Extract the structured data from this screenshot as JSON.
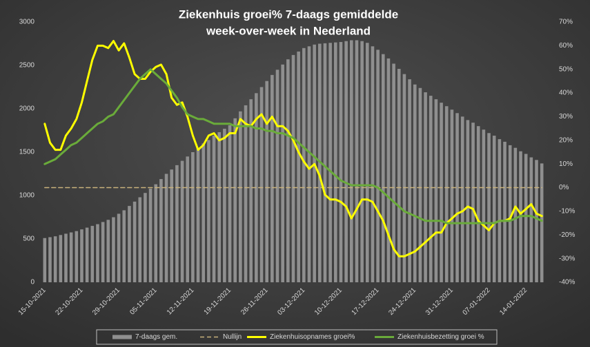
{
  "chart_data": {
    "type": "combo",
    "title_lines": [
      "Ziekenhuis groei% 7-daags gemiddelde",
      "week-over-week in Nederland"
    ],
    "categories": [
      "15-10-2021",
      null,
      null,
      null,
      null,
      null,
      null,
      "22-10-2021",
      null,
      null,
      null,
      null,
      null,
      null,
      "29-10-2021",
      null,
      null,
      null,
      null,
      null,
      null,
      "05-11-2021",
      null,
      null,
      null,
      null,
      null,
      null,
      "12-11-2021",
      null,
      null,
      null,
      null,
      null,
      null,
      "19-11-2021",
      null,
      null,
      null,
      null,
      null,
      null,
      "26-11-2021",
      null,
      null,
      null,
      null,
      null,
      null,
      "03-12-2021",
      null,
      null,
      null,
      null,
      null,
      null,
      "10-12-2021",
      null,
      null,
      null,
      null,
      null,
      null,
      "17-12-2021",
      null,
      null,
      null,
      null,
      null,
      null,
      "24-12-2021",
      null,
      null,
      null,
      null,
      null,
      null,
      "31-12-2021",
      null,
      null,
      null,
      null,
      null,
      null,
      "07-01-2022",
      null,
      null,
      null,
      null,
      null,
      null,
      "14-01-2022",
      null,
      null,
      null
    ],
    "ylim": [
      0,
      3000
    ],
    "yticks": [
      0,
      500,
      1000,
      1500,
      2000,
      2500,
      3000
    ],
    "y2lim": [
      -40,
      70
    ],
    "y2ticks": [
      {
        "value": -40,
        "label": "-40%"
      },
      {
        "value": -30,
        "label": "-30%"
      },
      {
        "value": -20,
        "label": "-20%"
      },
      {
        "value": -10,
        "label": "-10%"
      },
      {
        "value": 0,
        "label": "0%"
      },
      {
        "value": 10,
        "label": "10%"
      },
      {
        "value": 20,
        "label": "20%"
      },
      {
        "value": 30,
        "label": "30%"
      },
      {
        "value": 40,
        "label": "40%"
      },
      {
        "value": 50,
        "label": "50%"
      },
      {
        "value": 60,
        "label": "60%"
      },
      {
        "value": 70,
        "label": "70%"
      }
    ],
    "grid": false,
    "series": [
      {
        "name": "7-daags gem.",
        "type": "bar",
        "color": "#8f8f8f",
        "values": [
          510,
          520,
          530,
          545,
          560,
          575,
          590,
          610,
          630,
          650,
          670,
          695,
          720,
          750,
          790,
          830,
          880,
          930,
          980,
          1030,
          1080,
          1130,
          1190,
          1250,
          1300,
          1350,
          1400,
          1450,
          1500,
          1550,
          1600,
          1640,
          1690,
          1730,
          1770,
          1810,
          1890,
          1970,
          2040,
          2110,
          2180,
          2250,
          2320,
          2390,
          2450,
          2510,
          2570,
          2620,
          2660,
          2700,
          2720,
          2740,
          2750,
          2755,
          2760,
          2765,
          2770,
          2780,
          2790,
          2790,
          2780,
          2760,
          2720,
          2680,
          2630,
          2580,
          2520,
          2460,
          2400,
          2340,
          2280,
          2240,
          2190,
          2150,
          2110,
          2070,
          2030,
          1990,
          1950,
          1910,
          1870,
          1840,
          1800,
          1760,
          1720,
          1690,
          1650,
          1620,
          1580,
          1550,
          1510,
          1480,
          1440,
          1410,
          1370
        ]
      },
      {
        "name": "Nullijn",
        "type": "line",
        "axis": "y2",
        "dash": true,
        "color": "#c9b27c",
        "values": [
          0,
          0,
          0,
          0,
          0,
          0,
          0,
          0,
          0,
          0,
          0,
          0,
          0,
          0,
          0,
          0,
          0,
          0,
          0,
          0,
          0,
          0,
          0,
          0,
          0,
          0,
          0,
          0,
          0,
          0,
          0,
          0,
          0,
          0,
          0,
          0,
          0,
          0,
          0,
          0,
          0,
          0,
          0,
          0,
          0,
          0,
          0,
          0,
          0,
          0,
          0,
          0,
          0,
          0,
          0,
          0,
          0,
          0,
          0,
          0,
          0,
          0,
          0,
          0,
          0,
          0,
          0,
          0,
          0,
          0,
          0,
          0,
          0,
          0,
          0,
          0,
          0,
          0,
          0,
          0,
          0,
          0,
          0,
          0,
          0,
          0,
          0,
          0,
          0,
          0,
          0,
          0,
          0,
          0,
          0
        ]
      },
      {
        "name": "Ziekenhuisopnames groei%",
        "type": "line",
        "axis": "y2",
        "color": "#ffff00",
        "values": [
          27,
          19,
          16,
          16,
          22,
          25,
          29,
          36,
          45,
          54,
          60,
          60,
          59,
          62,
          58,
          61,
          55,
          48,
          46,
          46,
          49,
          51,
          52,
          48,
          38,
          35,
          36,
          30,
          22,
          16,
          18,
          22,
          23,
          20,
          21,
          23,
          23,
          29,
          27,
          26,
          29,
          31,
          27,
          30,
          26,
          26,
          24,
          20,
          15,
          11,
          8,
          10,
          5,
          -3,
          -5,
          -5,
          -6,
          -8,
          -13,
          -9,
          -5,
          -5,
          -6,
          -10,
          -14,
          -20,
          -26,
          -29,
          -29,
          -28,
          -27,
          -25,
          -23,
          -21,
          -19,
          -19,
          -15,
          -13,
          -11,
          -10,
          -8,
          -9,
          -14,
          -16,
          -18,
          -15,
          -14,
          -14,
          -13,
          -8,
          -11,
          -9,
          -7,
          -11,
          -12
        ]
      },
      {
        "name": "Ziekenhuisbezetting groei %",
        "type": "line",
        "axis": "y2",
        "color": "#6aab3a",
        "values": [
          10,
          11,
          12,
          14,
          16,
          18,
          19,
          21,
          23,
          25,
          27,
          28,
          30,
          31,
          34,
          37,
          40,
          43,
          46,
          48,
          50,
          48,
          46,
          44,
          41,
          38,
          34,
          31,
          30,
          29,
          29,
          28,
          27,
          27,
          27,
          27,
          26,
          26,
          26,
          26,
          25,
          25,
          24,
          24,
          23,
          23,
          22,
          21,
          19,
          17,
          15,
          13,
          11,
          9,
          7,
          5,
          3,
          2,
          1,
          1,
          1,
          1,
          1,
          0,
          -2,
          -4,
          -6,
          -8,
          -10,
          -11,
          -12,
          -13,
          -14,
          -14,
          -14,
          -14,
          -15,
          -15,
          -15,
          -15,
          -15,
          -15,
          -15,
          -15,
          -15,
          -15,
          -14,
          -14,
          -14,
          -13,
          -12,
          -12,
          -12,
          -13,
          -14
        ]
      }
    ]
  }
}
